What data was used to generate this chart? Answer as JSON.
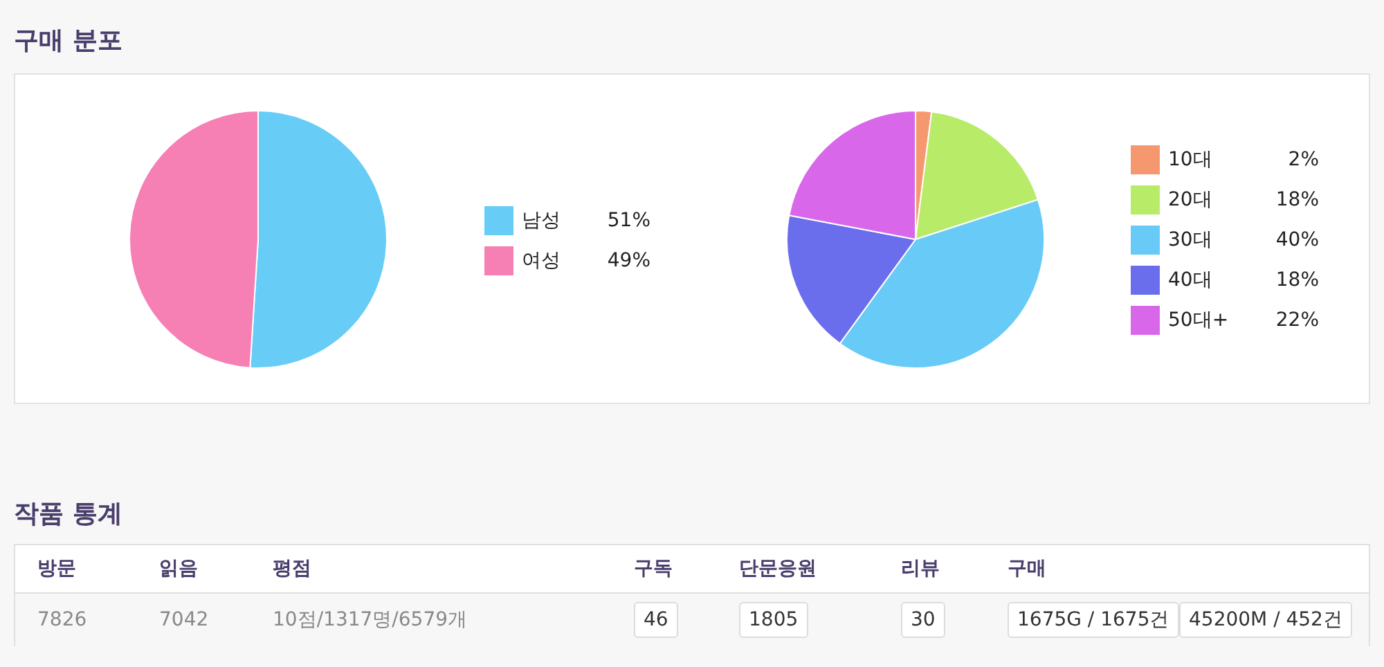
{
  "chart_data": [
    {
      "type": "pie",
      "title": "구매 분포",
      "categories": [
        "남성",
        "여성"
      ],
      "values": [
        51,
        49
      ],
      "colors": [
        "#67ccf6",
        "#f67fb4"
      ],
      "value_labels": [
        "51%",
        "49%"
      ],
      "legend": "right"
    },
    {
      "type": "pie",
      "categories": [
        "10대",
        "20대",
        "30대",
        "40대",
        "50대+"
      ],
      "values": [
        2,
        18,
        40,
        18,
        22
      ],
      "colors": [
        "#f5986f",
        "#b8eb68",
        "#68caf6",
        "#6b6eec",
        "#d967ea"
      ],
      "value_labels": [
        "2%",
        "18%",
        "40%",
        "18%",
        "22%"
      ],
      "legend": "right"
    },
    {
      "type": "other",
      "title": "작품 통계",
      "categories": [
        "방문",
        "읽음",
        "평점",
        "구독",
        "단문응원",
        "리뷰",
        "구매",
        null
      ],
      "value_labels": [
        "7826",
        "7042",
        "10점/1317명/6579개",
        "46",
        "1805",
        "30",
        "1675G / 1675건",
        "45200M / 452건"
      ]
    }
  ]
}
